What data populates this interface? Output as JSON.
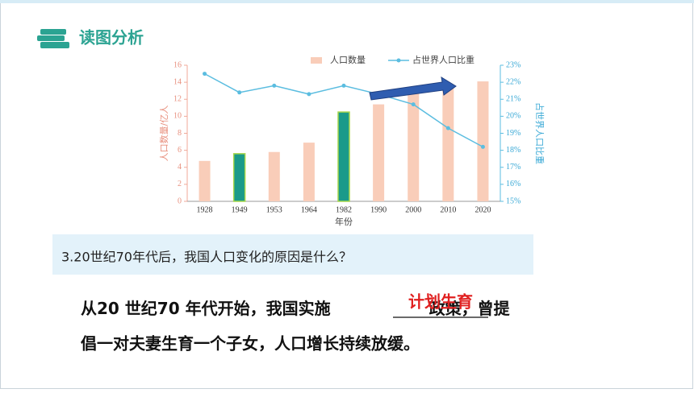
{
  "header": {
    "title": "读图分析"
  },
  "chart_data": {
    "type": "bar",
    "categories": [
      "1928",
      "1949",
      "1953",
      "1964",
      "1982",
      "1990",
      "2000",
      "2010",
      "2020"
    ],
    "series": [
      {
        "name": "人口数量",
        "color": "#f9cdb9",
        "colors": [
          "#f9cdb9",
          "#1a9a8a",
          "#f9cdb9",
          "#f9cdb9",
          "#1a9a8a",
          "#f9cdb9",
          "#f9cdb9",
          "#f9cdb9",
          "#f9cdb9"
        ],
        "values": [
          4.75,
          5.6,
          5.8,
          6.9,
          10.5,
          11.4,
          12.7,
          13.4,
          14.1
        ]
      },
      {
        "name": "占世界人口比重",
        "color": "#5bbde0",
        "type": "line",
        "axis": "y2",
        "values": [
          22.5,
          21.4,
          21.8,
          21.3,
          21.8,
          21.3,
          20.7,
          19.3,
          18.2
        ]
      }
    ],
    "ylim": [
      0,
      16
    ],
    "yticks": [
      0,
      2,
      4,
      6,
      8,
      10,
      12,
      14,
      16
    ],
    "y2lim": [
      15,
      23
    ],
    "y2ticks": [
      {
        "value": 15,
        "label": "15%"
      },
      {
        "value": 16,
        "label": "16%"
      },
      {
        "value": 17,
        "label": "17%"
      },
      {
        "value": 18,
        "label": "18%"
      },
      {
        "value": 19,
        "label": "19%"
      },
      {
        "value": 20,
        "label": "20%"
      },
      {
        "value": 21,
        "label": "21%"
      },
      {
        "value": 22,
        "label": "22%"
      },
      {
        "value": 23,
        "label": "23%"
      }
    ],
    "xlabel": "年份",
    "ylabel": "人口数量/亿人",
    "y2label": "占世界人口比重"
  },
  "question": "3.20世纪70年代后，我国人口变化的原因是什么？",
  "answer": {
    "before": "从20 世纪70 年代开始，我国实施",
    "blank": "计划生育",
    "after": "政策，曾提",
    "line2": "倡一对夫妻生育一个子女，人口增长持续放缓。"
  }
}
